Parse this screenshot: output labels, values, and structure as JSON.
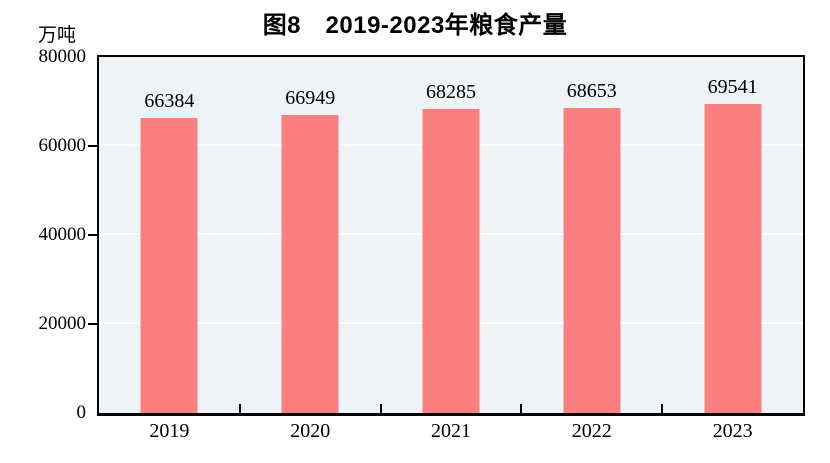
{
  "chart_data": {
    "type": "bar",
    "title": "图8　2019-2023年粮食产量",
    "unit_label": "万吨",
    "categories": [
      "2019",
      "2020",
      "2021",
      "2022",
      "2023"
    ],
    "series": [
      {
        "name": "粮食产量",
        "values": [
          66384,
          66949,
          68285,
          68653,
          69541
        ]
      }
    ],
    "data_labels_shown": true,
    "xlabel": "",
    "ylabel": "万吨",
    "ylim": [
      0,
      80000
    ],
    "yticks": [
      0,
      20000,
      40000,
      60000,
      80000
    ],
    "gridline_values": [
      20000,
      40000,
      60000
    ],
    "grid": "horizontal",
    "legend_position": "none",
    "colors": {
      "bar_fill": "#fa8080",
      "plot_background": "#edf3f7",
      "gridline": "#ffffff",
      "axis_frame": "#000000",
      "text": "#000000",
      "page_background": "#ffffff"
    }
  }
}
